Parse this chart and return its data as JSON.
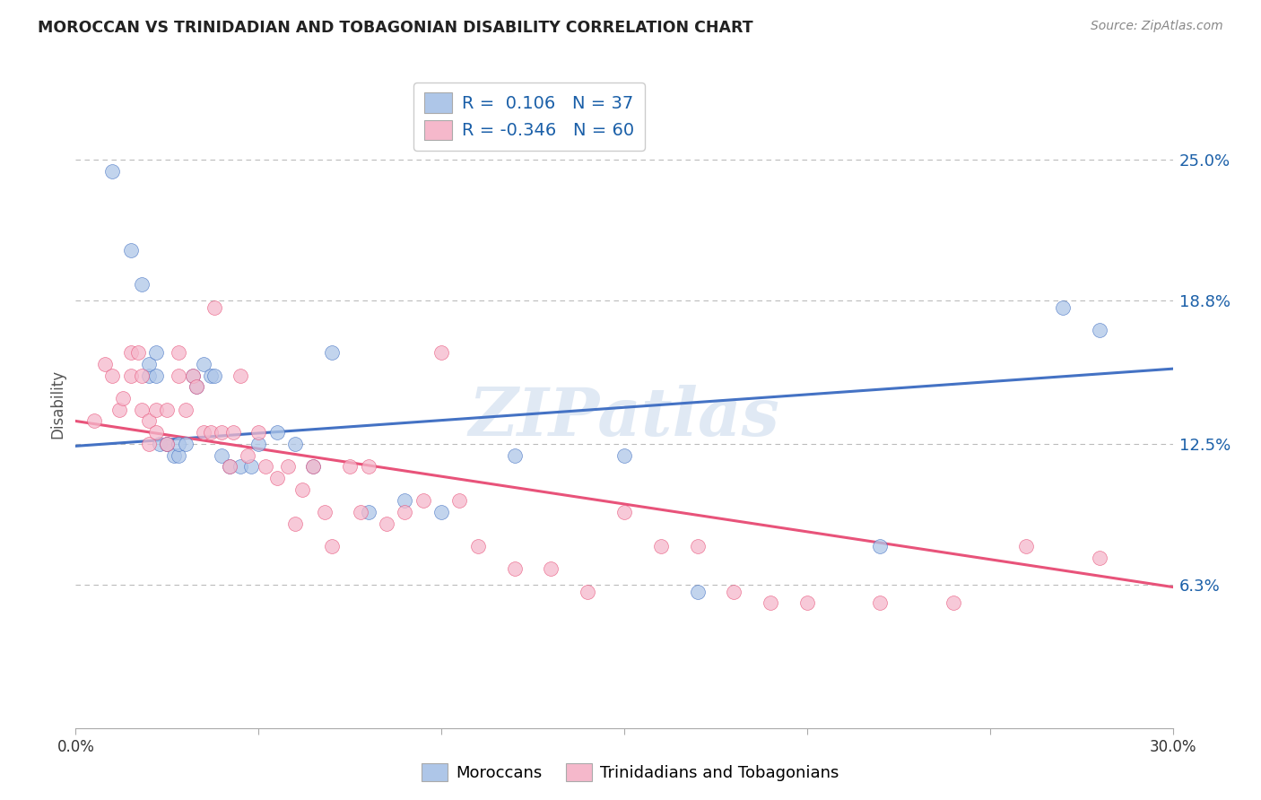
{
  "title": "MOROCCAN VS TRINIDADIAN AND TOBAGONIAN DISABILITY CORRELATION CHART",
  "source": "Source: ZipAtlas.com",
  "ylabel": "Disability",
  "y_ticks": [
    0.063,
    0.125,
    0.188,
    0.25
  ],
  "y_tick_labels": [
    "6.3%",
    "12.5%",
    "18.8%",
    "25.0%"
  ],
  "x_range": [
    0.0,
    0.3
  ],
  "y_range": [
    0.0,
    0.285
  ],
  "moroccan_R": "0.106",
  "moroccan_N": "37",
  "trinidadian_R": "-0.346",
  "trinidadian_N": "60",
  "moroccan_color": "#aec6e8",
  "trinidadian_color": "#f5b8cb",
  "moroccan_line_color": "#4472c4",
  "trinidadian_line_color": "#e8537a",
  "moroccan_x": [
    0.01,
    0.015,
    0.018,
    0.02,
    0.02,
    0.022,
    0.022,
    0.023,
    0.025,
    0.025,
    0.027,
    0.028,
    0.028,
    0.03,
    0.032,
    0.033,
    0.035,
    0.037,
    0.038,
    0.04,
    0.042,
    0.045,
    0.048,
    0.05,
    0.055,
    0.06,
    0.065,
    0.07,
    0.08,
    0.09,
    0.1,
    0.12,
    0.15,
    0.17,
    0.22,
    0.27,
    0.28
  ],
  "moroccan_y": [
    0.245,
    0.21,
    0.195,
    0.155,
    0.16,
    0.165,
    0.155,
    0.125,
    0.125,
    0.125,
    0.12,
    0.12,
    0.125,
    0.125,
    0.155,
    0.15,
    0.16,
    0.155,
    0.155,
    0.12,
    0.115,
    0.115,
    0.115,
    0.125,
    0.13,
    0.125,
    0.115,
    0.165,
    0.095,
    0.1,
    0.095,
    0.12,
    0.12,
    0.06,
    0.08,
    0.185,
    0.175
  ],
  "trinidadian_x": [
    0.005,
    0.008,
    0.01,
    0.012,
    0.013,
    0.015,
    0.015,
    0.017,
    0.018,
    0.018,
    0.02,
    0.02,
    0.022,
    0.022,
    0.025,
    0.025,
    0.028,
    0.028,
    0.03,
    0.032,
    0.033,
    0.035,
    0.037,
    0.038,
    0.04,
    0.042,
    0.043,
    0.045,
    0.047,
    0.05,
    0.052,
    0.055,
    0.058,
    0.06,
    0.062,
    0.065,
    0.068,
    0.07,
    0.075,
    0.078,
    0.08,
    0.085,
    0.09,
    0.095,
    0.1,
    0.105,
    0.11,
    0.12,
    0.13,
    0.14,
    0.15,
    0.16,
    0.17,
    0.18,
    0.19,
    0.2,
    0.22,
    0.24,
    0.26,
    0.28
  ],
  "trinidadian_y": [
    0.135,
    0.16,
    0.155,
    0.14,
    0.145,
    0.165,
    0.155,
    0.165,
    0.155,
    0.14,
    0.135,
    0.125,
    0.14,
    0.13,
    0.14,
    0.125,
    0.165,
    0.155,
    0.14,
    0.155,
    0.15,
    0.13,
    0.13,
    0.185,
    0.13,
    0.115,
    0.13,
    0.155,
    0.12,
    0.13,
    0.115,
    0.11,
    0.115,
    0.09,
    0.105,
    0.115,
    0.095,
    0.08,
    0.115,
    0.095,
    0.115,
    0.09,
    0.095,
    0.1,
    0.165,
    0.1,
    0.08,
    0.07,
    0.07,
    0.06,
    0.095,
    0.08,
    0.08,
    0.06,
    0.055,
    0.055,
    0.055,
    0.055,
    0.08,
    0.075
  ],
  "watermark": "ZIPatlas",
  "background_color": "#ffffff",
  "grid_color": "#bbbbbb",
  "legend_text_color": "#1a5fa8",
  "mor_line_start_y": 0.124,
  "mor_line_end_y": 0.158,
  "tri_line_start_y": 0.135,
  "tri_line_end_y": 0.062
}
